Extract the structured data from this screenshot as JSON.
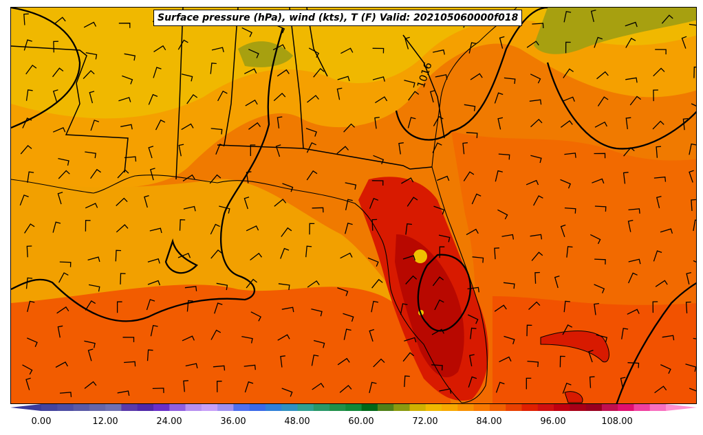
{
  "title": "Surface pressure (hPa), wind (kts), T (F) Valid: 202105060000f018",
  "isobar_label": "1016",
  "colorbar": {
    "ticks": [
      "0.00",
      "12.00",
      "24.00",
      "36.00",
      "48.00",
      "60.00",
      "72.00",
      "84.00",
      "96.00",
      "108.00"
    ],
    "colors": [
      "#3b3b9a",
      "#44449e",
      "#4d4da3",
      "#5a5aa6",
      "#6666aa",
      "#7070b2",
      "#5a3aaa",
      "#5028a8",
      "#6a2fc8",
      "#9060e0",
      "#b890f0",
      "#c8a0f8",
      "#a090f0",
      "#5070ee",
      "#3a6ae8",
      "#3080d8",
      "#3090c0",
      "#30a090",
      "#289868",
      "#20904a",
      "#108838",
      "#006818",
      "#508018",
      "#8a9a10",
      "#d0b000",
      "#f0b800",
      "#f8a800",
      "#f89000",
      "#f87800",
      "#f06000",
      "#e84000",
      "#e02000",
      "#d01010",
      "#c00010",
      "#a80018",
      "#980020",
      "#c01050",
      "#e01070",
      "#f040a0",
      "#f870c0",
      "#ff90d0"
    ]
  },
  "legend_fields": [
    "Surface pressure (hPa)",
    "wind (kts)",
    "T (F)"
  ]
}
